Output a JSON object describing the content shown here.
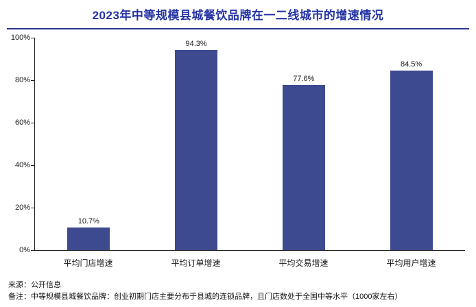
{
  "header": {
    "title": "2023年中等规模县城餐饮品牌在一二线城市的增速情况"
  },
  "theme": {
    "title_color": "#2433a5",
    "rule_color": "#2c3890",
    "bar_color": "#3d4a8f"
  },
  "chart_data": {
    "type": "bar",
    "title": "2023年中等规模县城餐饮品牌在一二线城市的增速情况",
    "categories": [
      "平均门店增速",
      "平均订单增速",
      "平均交易增速",
      "平均用户增速"
    ],
    "values": [
      10.7,
      94.3,
      77.6,
      84.5
    ],
    "value_labels": [
      "10.7%",
      "94.3%",
      "77.6%",
      "84.5%"
    ],
    "xlabel": "",
    "ylabel": "",
    "ylim": [
      0,
      100
    ],
    "yticks": [
      "0%",
      "20%",
      "40%",
      "60%",
      "80%",
      "100%"
    ],
    "grid": false,
    "legend": "none",
    "bar_color": "#3d4a8f"
  },
  "footer": {
    "source": "来源：公开信息",
    "note": "备注：中等规模县城餐饮品牌：创业初期门店主要分布于县城的连锁品牌，且门店数处于全国中等水平（1000家左右）"
  }
}
